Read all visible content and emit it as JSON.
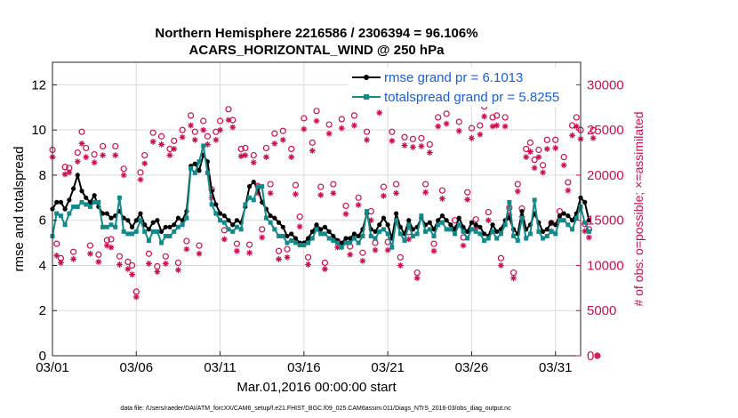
{
  "chart_data": {
    "type": "line",
    "title": "Northern Hemisphere 2216586 / 2306394 = 96.106%",
    "subtitle": "ACARS_HORIZONTAL_WIND @ 250 hPa",
    "xlabel": "Mar.01,2016 00:00:00 start",
    "ylabel": "rmse and totalspread",
    "y2label": "# of obs: o=possible; ×=assimilated",
    "footer": "data file: /Users/raeder/DAI/ATM_forcXX/CAM6_setup/f.e21.FHIST_BGC.f09_025.CAM6assim.011/Diags_NTrS_2016-03/obs_diag_output.nc",
    "xlim": [
      0,
      31.5
    ],
    "ylim": [
      0,
      13
    ],
    "y2lim": [
      0,
      32500
    ],
    "xticks": [
      0,
      5,
      10,
      15,
      20,
      25,
      30
    ],
    "xtick_labels": [
      "03/01",
      "03/06",
      "03/11",
      "03/16",
      "03/21",
      "03/26",
      "03/31"
    ],
    "yticks": [
      0,
      2,
      4,
      6,
      8,
      10,
      12
    ],
    "ytick_labels": [
      "0",
      "2",
      "4",
      "6",
      "8",
      "10",
      "12"
    ],
    "y2ticks": [
      0,
      5000,
      10000,
      15000,
      20000,
      25000,
      30000
    ],
    "y2tick_labels": [
      "0",
      "5000",
      "10000",
      "15000",
      "20000",
      "25000",
      "30000"
    ],
    "step_days": 0.25,
    "series": [
      {
        "name": "rmse grand pr = 6.1013",
        "color": "#000000",
        "axis": "left",
        "values": [
          6.5,
          6.8,
          6.8,
          6.5,
          6.9,
          7.4,
          8.0,
          7.3,
          7.0,
          6.8,
          7.1,
          6.6,
          6.3,
          6.3,
          6.1,
          6.2,
          6.4,
          6.1,
          6.0,
          5.7,
          6.0,
          6.3,
          5.8,
          5.6,
          5.9,
          6.0,
          5.5,
          5.7,
          5.7,
          5.8,
          6.1,
          6.0,
          6.4,
          8.4,
          8.5,
          8.2,
          8.9,
          8.6,
          7.3,
          6.7,
          6.3,
          6.2,
          6.0,
          5.8,
          6.0,
          5.9,
          6.6,
          7.5,
          7.7,
          7.4,
          6.8,
          6.5,
          6.2,
          6.1,
          5.9,
          5.7,
          5.3,
          5.4,
          5.2,
          5.0,
          5.0,
          5.2,
          5.5,
          5.8,
          5.6,
          5.7,
          5.5,
          5.3,
          5.1,
          5.0,
          5.2,
          5.2,
          5.4,
          5.3,
          5.6,
          6.3,
          5.6,
          5.5,
          5.8,
          6.1,
          5.8,
          5.2,
          6.3,
          5.7,
          5.4,
          6.0,
          5.6,
          5.7,
          6.1,
          5.8,
          5.9,
          5.6,
          6.0,
          6.2,
          6.0,
          5.8,
          5.6,
          6.1,
          5.7,
          5.5,
          5.9,
          5.8,
          5.7,
          5.4,
          5.3,
          5.8,
          5.5,
          5.6,
          6.0,
          6.1,
          5.6,
          5.4,
          6.4,
          5.6,
          5.8,
          6.3,
          5.9,
          5.5,
          5.6,
          5.9,
          5.8,
          6.2,
          6.3,
          6.2,
          6.0,
          6.3,
          7.0,
          6.8,
          6.0
        ],
        "marker": "circle-filled"
      },
      {
        "name": "totalspread grand pr = 5.8255",
        "color": "#138a8a",
        "axis": "left",
        "values": [
          5.3,
          6.3,
          6.2,
          5.8,
          6.3,
          6.6,
          6.6,
          6.8,
          6.7,
          6.6,
          6.8,
          6.8,
          5.7,
          5.7,
          5.8,
          5.7,
          7.0,
          5.5,
          5.4,
          5.4,
          5.5,
          6.0,
          5.5,
          5.1,
          5.5,
          5.5,
          5.0,
          5.3,
          5.3,
          5.5,
          5.7,
          5.8,
          6.1,
          8.3,
          8.1,
          8.6,
          9.3,
          8.1,
          6.7,
          6.3,
          6.0,
          5.9,
          5.6,
          5.5,
          5.7,
          5.6,
          6.7,
          7.0,
          6.9,
          7.5,
          7.5,
          6.1,
          5.9,
          5.6,
          5.3,
          5.3,
          5.0,
          5.1,
          5.0,
          4.9,
          4.9,
          5.0,
          5.2,
          5.6,
          5.4,
          5.4,
          5.2,
          5.1,
          5.0,
          4.8,
          5.0,
          5.0,
          5.2,
          5.0,
          5.3,
          6.4,
          5.3,
          5.2,
          5.5,
          5.6,
          5.4,
          4.8,
          6.0,
          5.4,
          5.1,
          5.8,
          5.3,
          5.4,
          6.2,
          5.5,
          5.6,
          5.3,
          5.8,
          5.9,
          5.6,
          5.6,
          5.4,
          5.8,
          5.5,
          5.2,
          5.6,
          5.5,
          5.4,
          5.1,
          5.2,
          5.5,
          5.2,
          5.4,
          5.8,
          6.8,
          5.3,
          5.1,
          6.1,
          5.2,
          5.4,
          6.9,
          5.5,
          5.2,
          5.3,
          5.5,
          5.4,
          6.0,
          6.0,
          5.8,
          5.6,
          6.1,
          6.6,
          5.9,
          5.5
        ],
        "marker": "square-filled"
      },
      {
        "name": "# of obs possible",
        "color": "#cc0e50",
        "axis": "right",
        "marker": "circle-open",
        "values": [
          22800,
          12400,
          10800,
          20900,
          20800,
          11500,
          22500,
          24800,
          23000,
          12200,
          22300,
          11200,
          23200,
          12800,
          12900,
          23200,
          11000,
          20700,
          10400,
          10000,
          7100,
          20300,
          22200,
          11300,
          24700,
          9900,
          24300,
          11000,
          22900,
          23800,
          10300,
          25000,
          12700,
          26600,
          24800,
          12200,
          26000,
          24300,
          18400,
          24800,
          26000,
          13900,
          27300,
          26100,
          12400,
          22900,
          23000,
          12300,
          22200,
          18800,
          14000,
          23000,
          19000,
          24600,
          11600,
          24900,
          11800,
          22900,
          18900,
          15400,
          26300,
          10900,
          23600,
          27100,
          18700,
          10300,
          25600,
          19000,
          12700,
          26200,
          16600,
          12100,
          26600,
          17500,
          11400,
          24800,
          16000,
          12500,
          28000,
          18700,
          12600,
          24800,
          19000,
          10900,
          24200,
          13700,
          24000,
          9200,
          24100,
          19000,
          23400,
          12400,
          26400,
          18300,
          26800,
          29300,
          15000,
          25900,
          13100,
          18100,
          25200,
          15100,
          25500,
          27600,
          15900,
          26400,
          26600,
          10800,
          26400,
          16400,
          9200,
          19000,
          16300,
          22900,
          23600,
          21700,
          22800,
          21100,
          23900,
          14700,
          23900,
          16000,
          22000,
          19200,
          25500,
          26400,
          25000,
          14600,
          14000,
          25000,
          0
        ]
      },
      {
        "name": "# of obs assimilated",
        "color": "#cc0e50",
        "axis": "right",
        "marker": "asterisk",
        "values": [
          22000,
          11100,
          10300,
          20100,
          20300,
          10700,
          21500,
          23500,
          22000,
          11300,
          21400,
          10400,
          22200,
          12200,
          12000,
          22200,
          10100,
          20000,
          9600,
          9000,
          6500,
          19500,
          21300,
          10200,
          23700,
          9300,
          23400,
          10200,
          22200,
          22900,
          9500,
          24200,
          11800,
          25500,
          23900,
          11300,
          25000,
          23400,
          17500,
          23900,
          25000,
          12900,
          26100,
          25300,
          11600,
          22100,
          22200,
          11400,
          21400,
          18000,
          13100,
          22000,
          18000,
          23500,
          10700,
          23900,
          10900,
          22000,
          17900,
          14300,
          25100,
          10100,
          22700,
          26000,
          17800,
          9600,
          24600,
          18000,
          12000,
          25200,
          15700,
          11200,
          25500,
          16700,
          10500,
          23900,
          15000,
          11700,
          26900,
          17700,
          11700,
          23800,
          18000,
          10000,
          23300,
          12900,
          23100,
          8600,
          23200,
          18100,
          22500,
          11600,
          25400,
          17400,
          25700,
          28200,
          14100,
          24900,
          12200,
          17300,
          24100,
          14200,
          24500,
          26500,
          15000,
          25400,
          25500,
          10000,
          25400,
          15600,
          8600,
          18200,
          15400,
          22000,
          22600,
          20800,
          22000,
          20300,
          22900,
          13800,
          23000,
          15100,
          21100,
          18300,
          24400,
          25400,
          24000,
          13800,
          13100,
          24100,
          0
        ]
      }
    ]
  }
}
